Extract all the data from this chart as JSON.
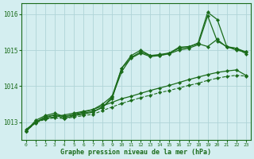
{
  "title": "Graphe pression niveau de la mer (hPa)",
  "bg_color": "#d4eef0",
  "grid_color": "#afd4d8",
  "line_color": "#1a6b1a",
  "xlim": [
    -0.5,
    23.5
  ],
  "ylim": [
    1012.5,
    1016.3
  ],
  "yticks": [
    1013,
    1014,
    1015,
    1016
  ],
  "xticks": [
    0,
    1,
    2,
    3,
    4,
    5,
    6,
    7,
    8,
    9,
    10,
    11,
    12,
    13,
    14,
    15,
    16,
    17,
    18,
    19,
    20,
    21,
    22,
    23
  ],
  "series": [
    {
      "x": [
        0,
        1,
        2,
        3,
        4,
        5,
        6,
        7,
        8,
        9,
        10,
        11,
        12,
        13,
        14,
        15,
        16,
        17,
        18,
        19,
        20,
        21,
        22,
        23
      ],
      "y": [
        1012.75,
        1013.0,
        1013.1,
        1013.15,
        1013.2,
        1013.25,
        1013.3,
        1013.35,
        1013.45,
        1013.55,
        1013.65,
        1013.72,
        1013.8,
        1013.88,
        1013.95,
        1014.02,
        1014.1,
        1014.18,
        1014.25,
        1014.32,
        1014.38,
        1014.42,
        1014.45,
        1014.3
      ],
      "style": "-",
      "marker": "D",
      "markersize": 2.2,
      "linewidth": 0.9
    },
    {
      "x": [
        0,
        1,
        2,
        3,
        4,
        5,
        6,
        7,
        8,
        9,
        10,
        11,
        12,
        13,
        14,
        15,
        16,
        17,
        18,
        19,
        20,
        21,
        22,
        23
      ],
      "y": [
        1012.8,
        1013.0,
        1013.15,
        1013.2,
        1013.15,
        1013.2,
        1013.25,
        1013.3,
        1013.4,
        1013.7,
        1014.4,
        1014.8,
        1014.95,
        1014.85,
        1014.85,
        1014.9,
        1015.0,
        1015.05,
        1015.15,
        1015.95,
        1015.25,
        1015.1,
        1015.0,
        1014.95
      ],
      "style": "-",
      "marker": "D",
      "markersize": 2.2,
      "linewidth": 0.9
    },
    {
      "x": [
        0,
        1,
        2,
        3,
        4,
        5,
        6,
        7,
        8,
        9,
        10,
        11,
        12,
        13,
        14,
        15,
        16,
        17,
        18,
        19,
        20,
        21,
        22,
        23
      ],
      "y": [
        1012.75,
        1013.0,
        1013.12,
        1013.2,
        1013.1,
        1013.18,
        1013.22,
        1013.28,
        1013.42,
        1013.65,
        1014.5,
        1014.85,
        1015.0,
        1014.85,
        1014.88,
        1014.92,
        1015.05,
        1015.08,
        1015.2,
        1016.05,
        1015.85,
        1015.1,
        1015.05,
        1014.95
      ],
      "style": "-",
      "marker": "D",
      "markersize": 2.2,
      "linewidth": 0.9
    },
    {
      "x": [
        0,
        1,
        2,
        3,
        4,
        5,
        6,
        7,
        8,
        9,
        10,
        11,
        12,
        13,
        14,
        15,
        16,
        17,
        18,
        19,
        20,
        21,
        22,
        23
      ],
      "y": [
        1012.75,
        1013.05,
        1013.18,
        1013.25,
        1013.15,
        1013.22,
        1013.28,
        1013.35,
        1013.5,
        1013.72,
        1014.5,
        1014.78,
        1014.92,
        1014.82,
        1014.85,
        1014.92,
        1015.08,
        1015.1,
        1015.18,
        1015.1,
        1015.3,
        1015.08,
        1015.05,
        1014.9
      ],
      "style": "-",
      "marker": "D",
      "markersize": 2.2,
      "linewidth": 0.9
    },
    {
      "x": [
        0,
        1,
        2,
        3,
        4,
        5,
        6,
        7,
        8,
        9,
        10,
        11,
        12,
        13,
        14,
        15,
        16,
        17,
        18,
        19,
        20,
        21,
        22,
        23
      ],
      "y": [
        1012.75,
        1012.98,
        1013.08,
        1013.12,
        1013.1,
        1013.14,
        1013.18,
        1013.22,
        1013.32,
        1013.42,
        1013.52,
        1013.6,
        1013.68,
        1013.75,
        1013.82,
        1013.88,
        1013.95,
        1014.02,
        1014.08,
        1014.16,
        1014.22,
        1014.27,
        1014.3,
        1014.28
      ],
      "style": "--",
      "marker": "D",
      "markersize": 2.2,
      "linewidth": 0.8
    }
  ]
}
